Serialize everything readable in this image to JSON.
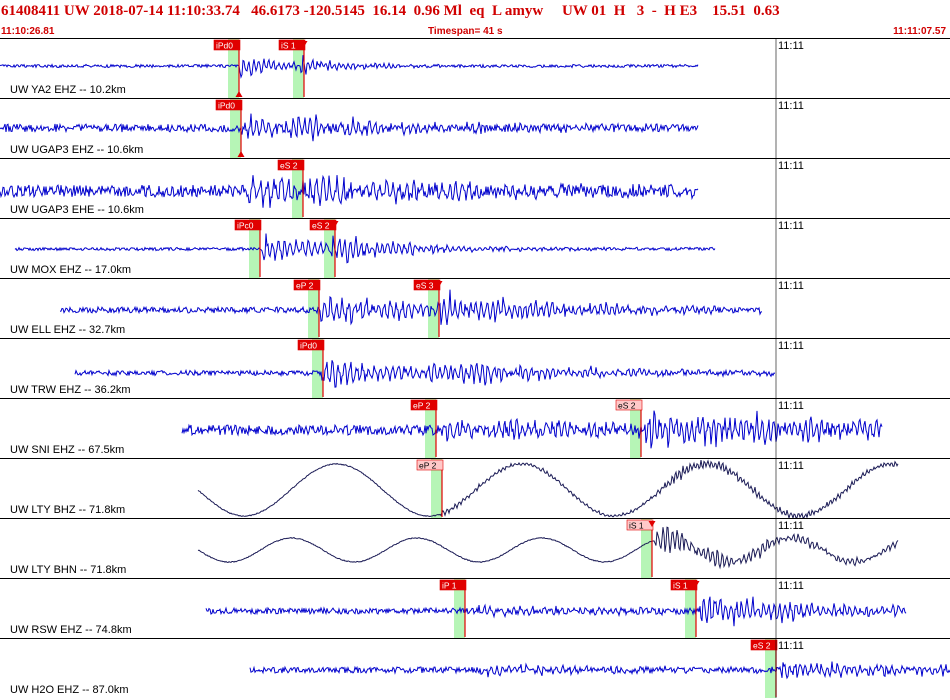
{
  "header": {
    "title": "61408411 UW 2018-07-14 11:10:33.74   46.6173 -120.5145  16.14  0.96 Ml  eq  L amyw     UW 01  H   3  -  H E3    15.51  0.63",
    "start_time": "11:10:26.81",
    "timespan": "Timespan=  41 s",
    "end_time": "11:11:07.57"
  },
  "colors": {
    "header_text": "#d00000",
    "trace": "#0000cc",
    "trace_dark": "#1a1a55",
    "pick_solid": "#e00000",
    "pick_light": "#ffc8c8",
    "pick_window": "#b6f5b6"
  },
  "panels": [
    {
      "label": "UW YA2 EHZ -- 10.2km",
      "tick": "11:11",
      "picks": [
        {
          "label": "iPd0",
          "x": 228,
          "style": "solid",
          "arrow": "up"
        },
        {
          "label": "iS 1",
          "x": 293,
          "style": "solid",
          "arrow": "down"
        }
      ]
    },
    {
      "label": "UW UGAP3 EHZ -- 10.6km",
      "tick": "11:11",
      "picks": [
        {
          "label": "iPd0",
          "x": 230,
          "style": "solid",
          "arrow": "up"
        }
      ]
    },
    {
      "label": "UW UGAP3 EHE -- 10.6km",
      "tick": "11:11",
      "picks": [
        {
          "label": "eS 2",
          "x": 292,
          "style": "solid",
          "arrow": "none"
        }
      ]
    },
    {
      "label": "UW MOX EHZ -- 17.0km",
      "tick": "11:11",
      "picks": [
        {
          "label": "iPc0",
          "x": 249,
          "style": "solid",
          "arrow": "none"
        },
        {
          "label": "eS 2",
          "x": 324,
          "style": "solid",
          "arrow": "down"
        }
      ]
    },
    {
      "label": "UW ELL EHZ -- 32.7km",
      "tick": "11:11",
      "picks": [
        {
          "label": "eP 2",
          "x": 308,
          "style": "solid",
          "arrow": "none"
        },
        {
          "label": "eS 3",
          "x": 428,
          "style": "solid",
          "arrow": "down"
        }
      ]
    },
    {
      "label": "UW TRW EHZ -- 36.2km",
      "tick": "11:11",
      "picks": [
        {
          "label": "iPd0",
          "x": 312,
          "style": "solid",
          "arrow": "none"
        }
      ]
    },
    {
      "label": "UW SNI EHZ -- 67.5km",
      "tick": "11:11",
      "picks": [
        {
          "label": "eP 2",
          "x": 425,
          "style": "solid",
          "arrow": "none"
        },
        {
          "label": "eS 2",
          "x": 630,
          "style": "light",
          "arrow": "none"
        }
      ]
    },
    {
      "label": "UW LTY BHZ -- 71.8km",
      "tick": "11:11",
      "picks": [
        {
          "label": "eP 2",
          "x": 431,
          "style": "light",
          "arrow": "none"
        }
      ]
    },
    {
      "label": "UW LTY BHN -- 71.8km",
      "tick": "11:11",
      "picks": [
        {
          "label": "iS 1",
          "x": 641,
          "style": "light",
          "arrow": "down"
        }
      ]
    },
    {
      "label": "UW RSW EHZ -- 74.8km",
      "tick": "11:11",
      "picks": [
        {
          "label": "iP 1",
          "x": 454,
          "style": "solid",
          "arrow": "none"
        },
        {
          "label": "iS 1",
          "x": 685,
          "style": "solid",
          "arrow": "down"
        }
      ]
    },
    {
      "label": "UW H2O EHZ -- 87.0km",
      "tick": "11:11",
      "picks": [
        {
          "label": "eS 2",
          "x": 765,
          "style": "solid",
          "arrow": "none"
        }
      ]
    }
  ]
}
